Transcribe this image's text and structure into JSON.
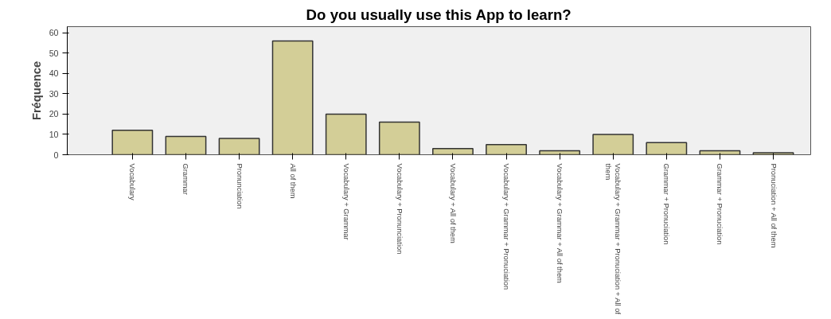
{
  "chart_data": {
    "type": "bar",
    "title": "Do you usually use this App to learn?",
    "ylabel": "Fréquence",
    "categories": [
      "Vocabulary",
      "Grammar",
      "Pronunciation",
      "All of them",
      "Vocabulary + Grammar",
      "Vocabulary + Pronunciation",
      "Vocabulary + All of them",
      "Vocabulary + Grammar + Pronuciation",
      "Vocabulary + Grammar + All of them",
      "Vocabulary + Grammar + Pronuciation + All of them",
      "Grammar + Pronuciation",
      "Grammar + Pronuciation",
      "Pronuciation + All of them"
    ],
    "values": [
      12,
      9,
      8,
      56,
      20,
      16,
      3,
      5,
      2,
      10,
      6,
      2,
      1
    ],
    "color": "#d3ce97",
    "ylim": [
      0,
      63
    ],
    "yticks": [
      0,
      10,
      20,
      30,
      40,
      50,
      60
    ],
    "grid": false
  }
}
